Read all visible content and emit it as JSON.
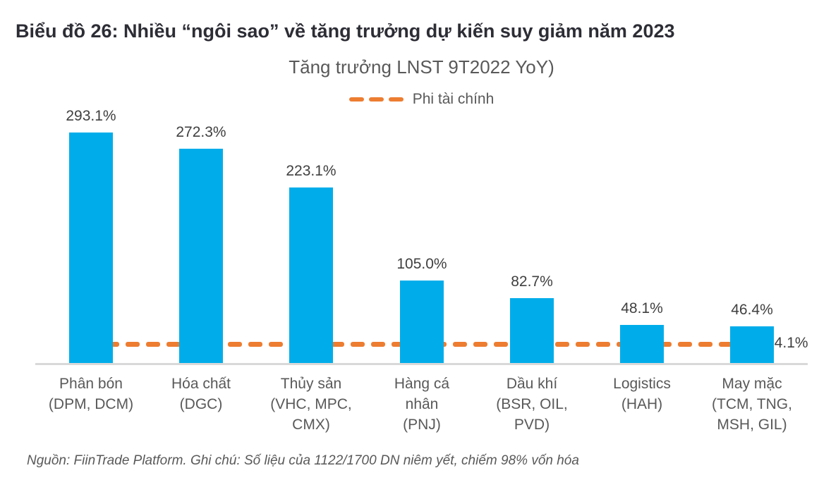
{
  "page_title": "Biểu đồ 26: Nhiều “ngôi sao” về tăng trưởng dự kiến suy giảm năm 2023",
  "footer": {
    "note": "Nguồn: FiinTrade Platform. Ghi chú: Số liệu của 1122/1700 DN niêm yết, chiếm 98% vốn hóa"
  },
  "colors": {
    "bar": "#00ADEA",
    "reference_line": "#ED7D31",
    "title_text": "#2D2D36",
    "axis_text": "#595959",
    "value_text": "#404040",
    "baseline": "#D9D9D9"
  },
  "chart_data": {
    "type": "bar",
    "title": "Tăng trưởng LNST 9T2022 YoY)",
    "legend": [
      {
        "label": "Phi tài chính",
        "marker": "dashed-line",
        "color": "#ED7D31"
      }
    ],
    "legend_position": "top-center",
    "grid": false,
    "ylim": [
      0,
      310
    ],
    "y_axis_visible": false,
    "categories": [
      "Phân bón\n(DPM, DCM)",
      "Hóa chất\n(DGC)",
      "Thủy sản\n(VHC, MPC,\nCMX)",
      "Hàng cá\nnhân\n(PNJ)",
      "Dầu khí\n(BSR, OIL,\nPVD)",
      "Logistics\n(HAH)",
      "May mặc\n(TCM, TNG,\nMSH, GIL)"
    ],
    "values": [
      293.1,
      272.3,
      223.1,
      105.0,
      82.7,
      48.1,
      46.4
    ],
    "value_labels": [
      "293.1%",
      "272.3%",
      "223.1%",
      "105.0%",
      "82.7%",
      "48.1%",
      "46.4%"
    ],
    "reference_line": {
      "series": "Phi tài chính",
      "value": 24.1,
      "label": "24.1%",
      "style": "dashed",
      "color": "#ED7D31"
    }
  }
}
